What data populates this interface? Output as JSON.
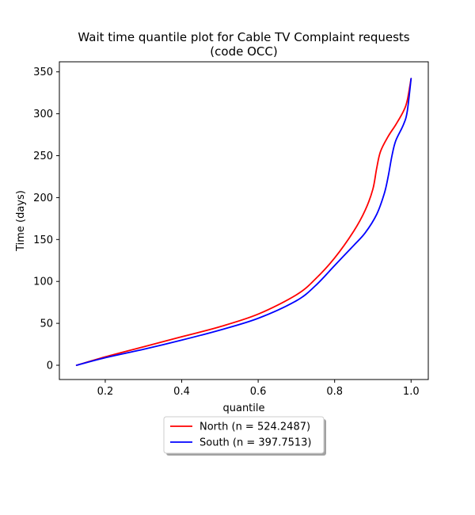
{
  "chart_data": {
    "type": "line",
    "title_lines": [
      "Wait time quantile plot for Cable TV Complaint  requests",
      "(code OCC)"
    ],
    "xlabel": "quantile",
    "ylabel": "Time (days)",
    "xlim": [
      0.08,
      1.045
    ],
    "ylim": [
      -17,
      362
    ],
    "xticks": [
      0.2,
      0.4,
      0.6,
      0.8,
      1.0
    ],
    "xtick_labels": [
      "0.2",
      "0.4",
      "0.6",
      "0.8",
      "1.0"
    ],
    "yticks": [
      0,
      50,
      100,
      150,
      200,
      250,
      300,
      350
    ],
    "ytick_labels": [
      "0",
      "50",
      "100",
      "150",
      "200",
      "250",
      "300",
      "350"
    ],
    "grid": false,
    "legend_placement": "below-center",
    "series": [
      {
        "name": "North (n = 524.2487)",
        "color": "#ff0000",
        "x": [
          0.125,
          0.2,
          0.3,
          0.4,
          0.5,
          0.6,
          0.7,
          0.75,
          0.8,
          0.85,
          0.88,
          0.9,
          0.91,
          0.92,
          0.94,
          0.96,
          0.98,
          0.99,
          1.0
        ],
        "y": [
          0,
          10,
          22,
          34,
          46,
          61,
          84,
          103,
          128,
          160,
          185,
          210,
          235,
          255,
          273,
          287,
          303,
          316,
          342
        ]
      },
      {
        "name": "South (n = 397.7513)",
        "color": "#0000ff",
        "x": [
          0.125,
          0.2,
          0.3,
          0.4,
          0.5,
          0.6,
          0.7,
          0.75,
          0.8,
          0.85,
          0.88,
          0.91,
          0.93,
          0.94,
          0.95,
          0.96,
          0.98,
          0.99,
          1.0
        ],
        "y": [
          0,
          9,
          19,
          30,
          42,
          56,
          77,
          95,
          119,
          143,
          158,
          180,
          205,
          225,
          250,
          268,
          287,
          303,
          342
        ]
      }
    ]
  }
}
